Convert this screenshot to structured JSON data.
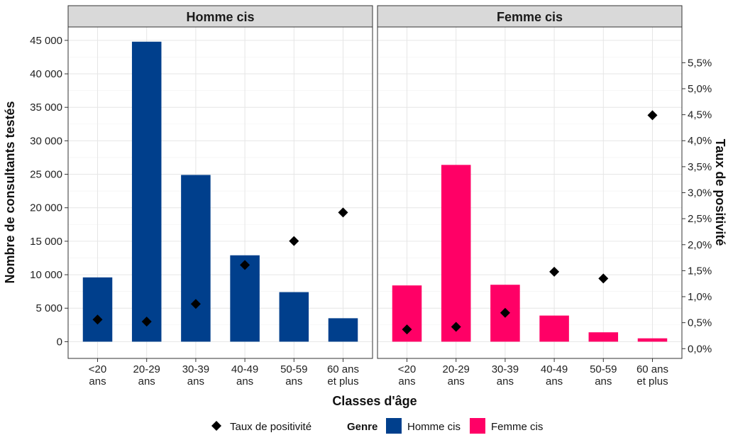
{
  "chart_data": {
    "type": "bar",
    "facet_titles": [
      "Homme cis",
      "Femme cis"
    ],
    "categories": [
      [
        "<20",
        "ans"
      ],
      [
        "20-29",
        "ans"
      ],
      [
        "30-39",
        "ans"
      ],
      [
        "40-49",
        "ans"
      ],
      [
        "50-59",
        "ans"
      ],
      [
        "60 ans",
        "et plus"
      ]
    ],
    "series": [
      {
        "name": "Homme cis",
        "kind": "bar",
        "axis": "left",
        "color": "#003F8C",
        "values": [
          9600,
          44800,
          24900,
          12900,
          7400,
          3500
        ]
      },
      {
        "name": "Femme cis",
        "kind": "bar",
        "axis": "left",
        "color": "#FF0066",
        "values": [
          8400,
          26400,
          8500,
          3900,
          1400,
          500
        ]
      }
    ],
    "positivity": {
      "name": "Taux de positivité",
      "axis": "right",
      "marker": "diamond",
      "color": "#000000",
      "homme_cis": [
        0.56,
        0.52,
        0.86,
        1.61,
        2.07,
        2.62
      ],
      "femme_cis": [
        0.37,
        0.42,
        0.69,
        1.48,
        1.35,
        4.49
      ]
    },
    "y_left": {
      "label": "Nombre de consultants testés",
      "lim": [
        -2500,
        47000
      ],
      "ticks": [
        0,
        5000,
        10000,
        15000,
        20000,
        25000,
        30000,
        35000,
        40000,
        45000
      ],
      "tick_labels": [
        "0",
        "5 000",
        "10 000",
        "15 000",
        "20 000",
        "25 000",
        "30 000",
        "35 000",
        "40 000",
        "45 000"
      ]
    },
    "y_right": {
      "label": "Taux de positivité",
      "lim": [
        -0.1875,
        6.1875
      ],
      "ticks": [
        0,
        0.5,
        1,
        1.5,
        2,
        2.5,
        3,
        3.5,
        4,
        4.5,
        5,
        5.5
      ],
      "tick_labels": [
        "0,0%",
        "0,5%",
        "1,0%",
        "1,5%",
        "2,0%",
        "2,5%",
        "3,0%",
        "3,5%",
        "4,0%",
        "4,5%",
        "5,0%",
        "5,5%"
      ]
    },
    "xlabel": "Classes d'âge",
    "grid": true,
    "legend": {
      "position": "bottom",
      "marker_label": "Taux de positivité",
      "title": "Genre",
      "entries": [
        "Homme cis",
        "Femme cis"
      ]
    }
  }
}
